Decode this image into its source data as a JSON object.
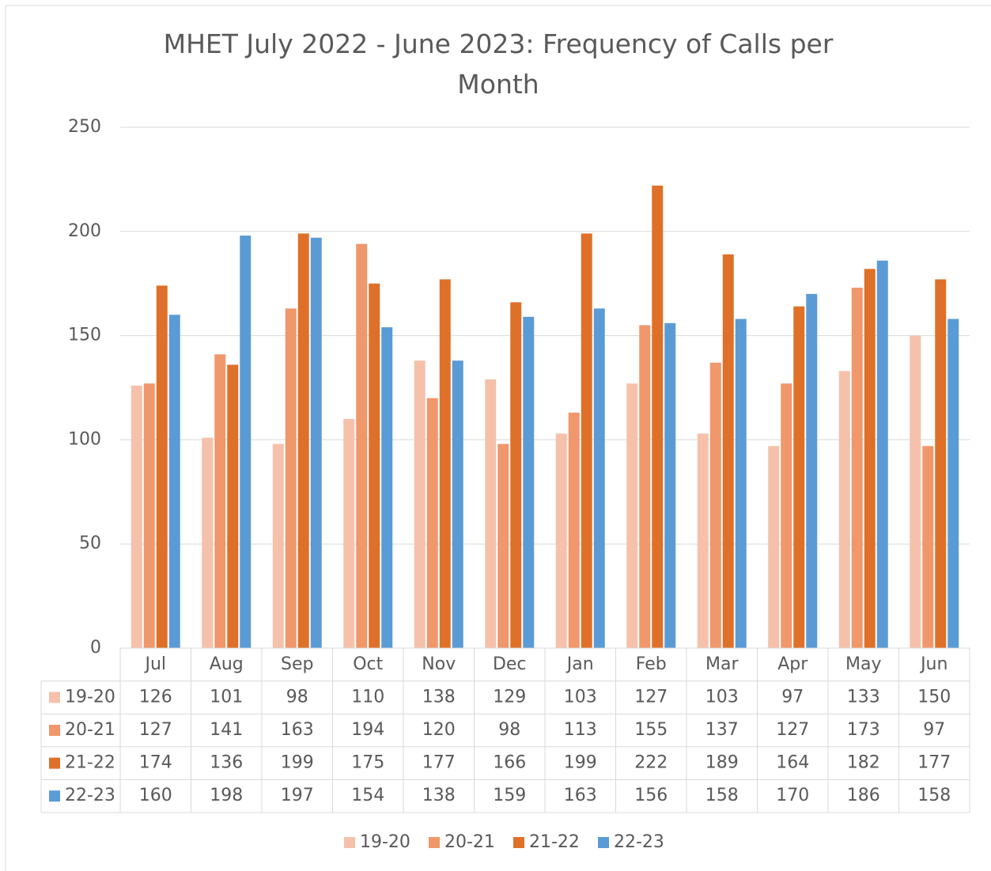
{
  "chart_data": {
    "type": "bar",
    "title": "MHET July 2022 - June 2023: Frequency of Calls per Month",
    "categories": [
      "Jul",
      "Aug",
      "Sep",
      "Oct",
      "Nov",
      "Dec",
      "Jan",
      "Feb",
      "Mar",
      "Apr",
      "May",
      "Jun"
    ],
    "series": [
      {
        "name": "19-20",
        "color": "#f5c1ab",
        "values": [
          126,
          101,
          98,
          110,
          138,
          129,
          103,
          127,
          103,
          97,
          133,
          150
        ]
      },
      {
        "name": "20-21",
        "color": "#f0976b",
        "values": [
          127,
          141,
          163,
          194,
          120,
          98,
          113,
          155,
          137,
          127,
          173,
          97
        ]
      },
      {
        "name": "21-22",
        "color": "#df7029",
        "values": [
          174,
          136,
          199,
          175,
          177,
          166,
          199,
          222,
          189,
          164,
          182,
          177
        ]
      },
      {
        "name": "22-23",
        "color": "#5b9bd5",
        "values": [
          160,
          198,
          197,
          154,
          138,
          159,
          163,
          156,
          158,
          170,
          186,
          158
        ]
      }
    ],
    "ylim": [
      0,
      250
    ],
    "yticks": [
      0,
      50,
      100,
      150,
      200,
      250
    ],
    "grid": true,
    "legend": "bottom",
    "data_table": true
  }
}
